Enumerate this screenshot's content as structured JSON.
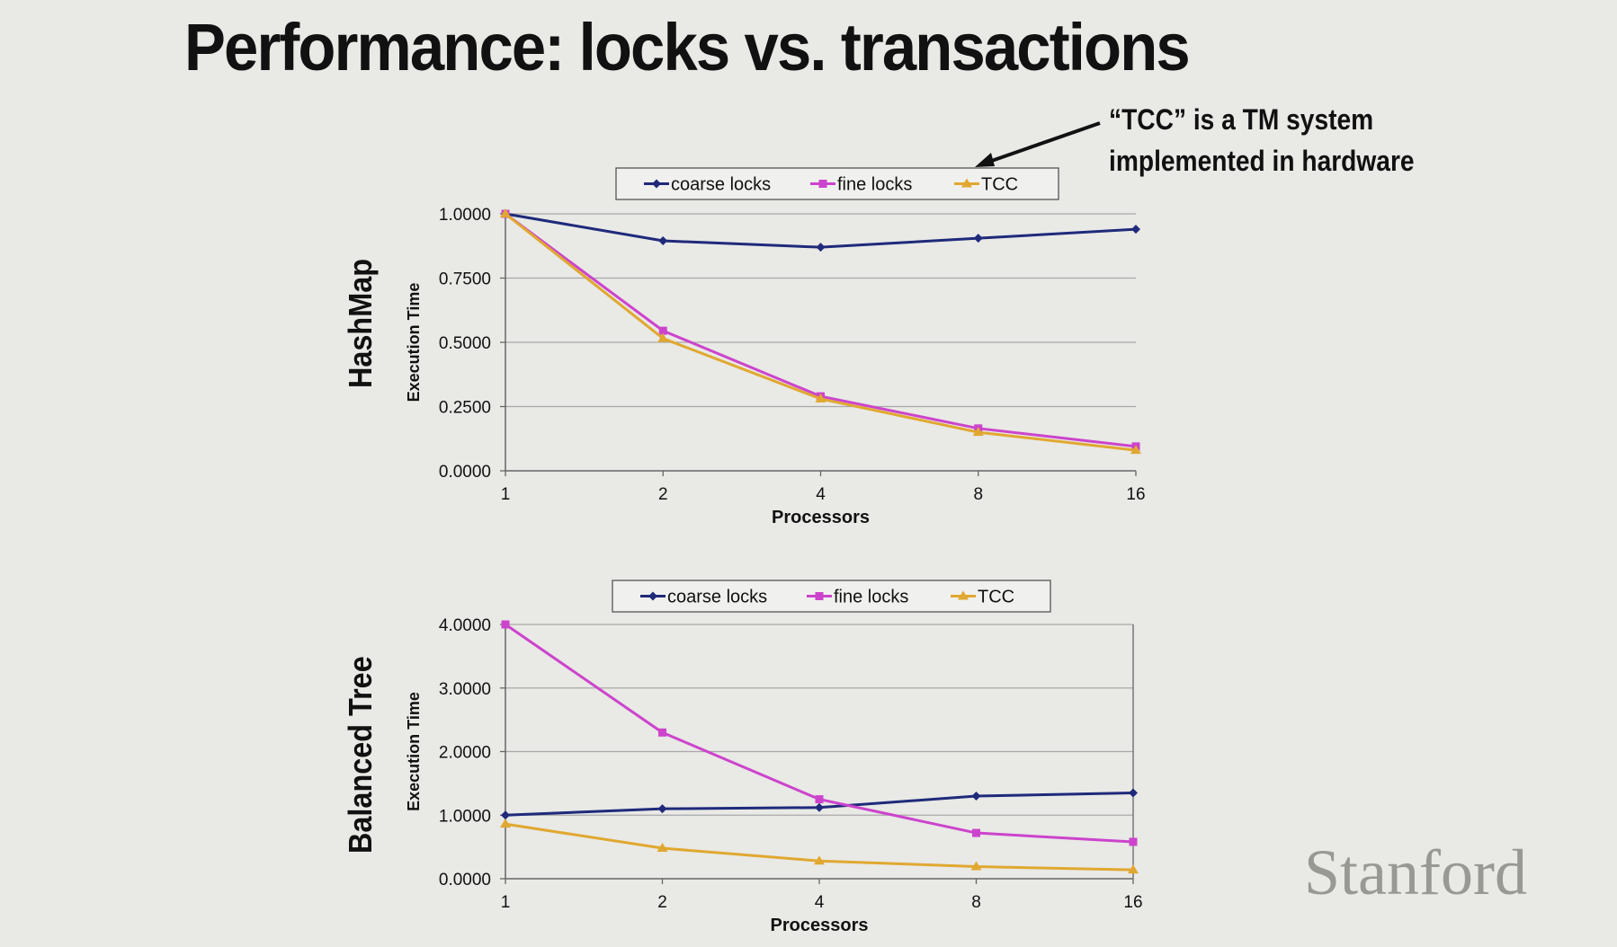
{
  "slide": {
    "title": "Performance: locks vs. transactions",
    "annotation_line1": "“TCC” is a TM system",
    "annotation_line2": "implemented in hardware",
    "logo": "Stanford"
  },
  "colors": {
    "coarse": "#1f2a7a",
    "fine": "#cc44cc",
    "tcc": "#e0a830",
    "grid": "#a8a8a8",
    "axis": "#666666"
  },
  "chart_data": [
    {
      "type": "line",
      "side_label": "HashMap",
      "ylabel": "Execution Time",
      "xlabel": "Processors",
      "categories": [
        "1",
        "2",
        "4",
        "8",
        "16"
      ],
      "ylim": [
        0,
        1
      ],
      "yticks": [
        "0.0000",
        "0.2500",
        "0.5000",
        "0.7500",
        "1.0000"
      ],
      "legend": "top",
      "grid": true,
      "series": [
        {
          "name": "coarse locks",
          "marker": "diamond",
          "values": [
            1.0,
            0.895,
            0.87,
            0.905,
            0.94
          ]
        },
        {
          "name": "fine locks",
          "marker": "square",
          "values": [
            1.0,
            0.545,
            0.29,
            0.165,
            0.095
          ]
        },
        {
          "name": "TCC",
          "marker": "triangle",
          "values": [
            1.0,
            0.515,
            0.28,
            0.15,
            0.08
          ]
        }
      ]
    },
    {
      "type": "line",
      "side_label": "Balanced Tree",
      "ylabel": "Execution Time",
      "xlabel": "Processors",
      "categories": [
        "1",
        "2",
        "4",
        "8",
        "16"
      ],
      "ylim": [
        0,
        4
      ],
      "yticks": [
        "0.0000",
        "1.0000",
        "2.0000",
        "3.0000",
        "4.0000"
      ],
      "legend": "top",
      "grid": true,
      "series": [
        {
          "name": "coarse locks",
          "marker": "diamond",
          "values": [
            1.0,
            1.1,
            1.12,
            1.3,
            1.35
          ]
        },
        {
          "name": "fine locks",
          "marker": "square",
          "values": [
            4.0,
            2.3,
            1.25,
            0.72,
            0.58
          ]
        },
        {
          "name": "TCC",
          "marker": "triangle",
          "values": [
            0.86,
            0.48,
            0.28,
            0.19,
            0.14
          ]
        }
      ]
    }
  ]
}
